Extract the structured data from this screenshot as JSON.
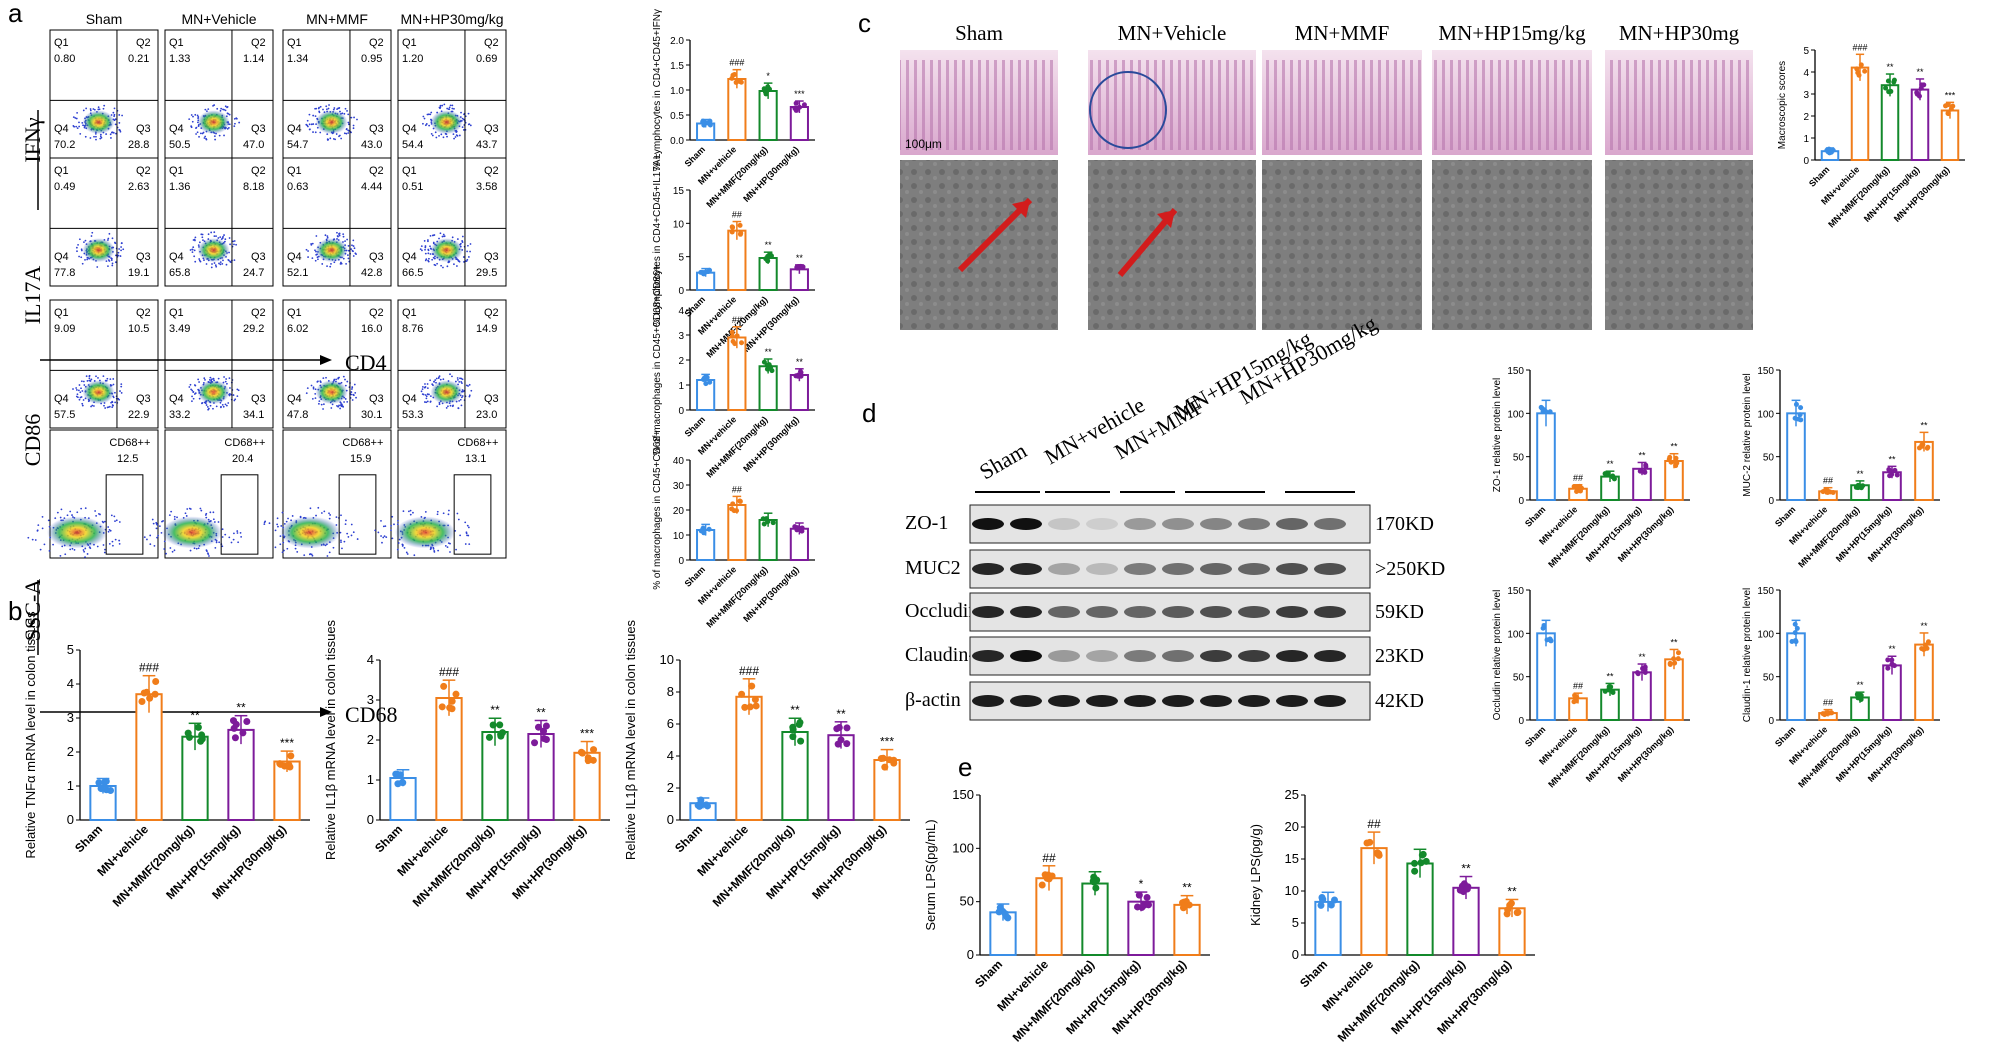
{
  "colors": {
    "sham": "#3a8ee6",
    "vehicle": "#f07d1a",
    "mmf": "#13892b",
    "hp15": "#7d1b9a",
    "hp30": "#f07d1a",
    "blue_ring": "#2a4a9a",
    "arrow": "#d21c1c"
  },
  "panel_a": {
    "letter": "a",
    "col_titles": [
      "Sham",
      "MN+Vehicle",
      "MN+MMF",
      "MN+HP30mg/kg"
    ],
    "axis_y": [
      "IFNγ",
      "IL17A",
      "CD86",
      "SSC-A"
    ],
    "axis_x": [
      "CD4",
      "CD68"
    ],
    "quad_labels": [
      "Q1",
      "Q2",
      "Q4",
      "Q3"
    ],
    "rows": [
      {
        "q": [
          [
            "0.80",
            "0.21",
            "70.2",
            "28.8"
          ],
          [
            "1.33",
            "1.14",
            "50.5",
            "47.0"
          ],
          [
            "1.34",
            "0.95",
            "54.7",
            "43.0"
          ],
          [
            "1.20",
            "0.69",
            "54.4",
            "43.7"
          ]
        ]
      },
      {
        "q": [
          [
            "0.49",
            "2.63",
            "77.8",
            "19.1"
          ],
          [
            "1.36",
            "8.18",
            "65.8",
            "24.7"
          ],
          [
            "0.63",
            "4.44",
            "52.1",
            "42.8"
          ],
          [
            "0.51",
            "3.58",
            "66.5",
            "29.5"
          ]
        ]
      },
      {
        "q": [
          [
            "9.09",
            "10.5",
            "57.5",
            "22.9"
          ],
          [
            "3.49",
            "29.2",
            "33.2",
            "34.1"
          ],
          [
            "6.02",
            "16.0",
            "47.8",
            "30.1"
          ],
          [
            "8.76",
            "14.9",
            "53.3",
            "23.0"
          ]
        ]
      }
    ],
    "gate_label": "CD68++",
    "gate_values": [
      "12.5",
      "20.4",
      "15.9",
      "13.1"
    ]
  },
  "bar_groups": {
    "five": [
      "Sham",
      "MN+vehicle",
      "MN+MMF(20mg/kg)",
      "MN+HP(15mg/kg)",
      "MN+HP(30mg/kg)"
    ],
    "four": [
      "Sham",
      "MN+vehicle",
      "MN+MMF(20mg/kg)",
      "MN+HP(30mg/kg)"
    ],
    "five_noparen": [
      "Sham",
      "MN+vehicle",
      "MN+MMF(20mg/kg)",
      "MN+HP(15mg/kg)",
      "MN+HP(30mg/kg)"
    ]
  },
  "chart_data": [
    {
      "id": "a1",
      "type": "bar",
      "ylabel": "% Lymphocytes in CD4+CD45+IFNγ",
      "ylim": [
        0,
        2
      ],
      "ticks": [
        "0.0",
        "0.5",
        "1.0",
        "1.5",
        "2.0"
      ],
      "values": [
        0.33,
        1.22,
        0.98,
        0.66
      ],
      "sig": [
        "",
        "###",
        "*",
        "***"
      ]
    },
    {
      "id": "a2",
      "type": "bar",
      "ylabel": "% Lymphocytes in CD4+CD45+IL17A+",
      "ylim": [
        0,
        15
      ],
      "ticks": [
        "0",
        "5",
        "10",
        "15"
      ],
      "values": [
        2.6,
        8.9,
        4.8,
        3.1
      ],
      "sig": [
        "",
        "##",
        "**",
        "**"
      ]
    },
    {
      "id": "a3",
      "type": "bar",
      "ylabel": "% of macrophages in CD45+CD68+CD86+",
      "ylim": [
        0,
        4
      ],
      "ticks": [
        "0",
        "1",
        "2",
        "3",
        "4"
      ],
      "values": [
        1.2,
        2.9,
        1.75,
        1.4
      ],
      "sig": [
        "",
        "##",
        "**",
        "**"
      ]
    },
    {
      "id": "a4",
      "type": "bar",
      "ylabel": "% of macrophages in CD45+CD68+",
      "ylim": [
        0,
        40
      ],
      "ticks": [
        "0",
        "10",
        "20",
        "30",
        "40"
      ],
      "values": [
        12,
        22,
        16,
        12.5
      ],
      "sig": [
        "",
        "##",
        "",
        ""
      ]
    },
    {
      "id": "b1",
      "type": "bar",
      "ylabel": "Relative TNFα mRNA level in colon tissues",
      "ylim": [
        0,
        5
      ],
      "ticks": [
        "0",
        "1",
        "2",
        "3",
        "4",
        "5"
      ],
      "values": [
        1.0,
        3.7,
        2.45,
        2.65,
        1.72
      ],
      "sig": [
        "",
        "###",
        "**",
        "**",
        "***"
      ]
    },
    {
      "id": "b2",
      "type": "bar",
      "ylabel": "Relative IL1β mRNA level in colon tissues",
      "ylim": [
        0,
        4
      ],
      "ticks": [
        "0",
        "1",
        "2",
        "3",
        "4"
      ],
      "values": [
        1.05,
        3.05,
        2.2,
        2.15,
        1.68
      ],
      "sig": [
        "",
        "###",
        "**",
        "**",
        "***"
      ]
    },
    {
      "id": "b3",
      "type": "bar",
      "ylabel": "Relative IL1β mRNA level in colon tissues",
      "ylim": [
        0,
        10
      ],
      "ticks": [
        "0",
        "2",
        "4",
        "6",
        "8",
        "10"
      ],
      "values": [
        1.05,
        7.7,
        5.5,
        5.3,
        3.75
      ],
      "sig": [
        "",
        "###",
        "**",
        "**",
        "***"
      ]
    },
    {
      "id": "c1",
      "type": "bar",
      "ylabel": "Macroscopic scores",
      "ylim": [
        0,
        5
      ],
      "ticks": [
        "0",
        "1",
        "2",
        "3",
        "4",
        "5"
      ],
      "values": [
        0.4,
        4.2,
        3.4,
        3.2,
        2.25
      ],
      "sig": [
        "",
        "###",
        "**",
        "**",
        "***"
      ]
    },
    {
      "id": "d1",
      "type": "bar",
      "ylabel": "ZO-1 relative protein level",
      "ylim": [
        0,
        150
      ],
      "ticks": [
        "0",
        "50",
        "100",
        "150"
      ],
      "values": [
        100,
        13,
        27,
        36,
        45
      ],
      "sig": [
        "",
        "##",
        "**",
        "**",
        "**"
      ]
    },
    {
      "id": "d2",
      "type": "bar",
      "ylabel": "MUC-2 relative protein level",
      "ylim": [
        0,
        150
      ],
      "ticks": [
        "0",
        "50",
        "100",
        "150"
      ],
      "values": [
        100,
        10,
        17,
        32,
        67
      ],
      "sig": [
        "",
        "##",
        "**",
        "**",
        "**"
      ]
    },
    {
      "id": "d3",
      "type": "bar",
      "ylabel": "Occludin relative protein level",
      "ylim": [
        0,
        150
      ],
      "ticks": [
        "0",
        "50",
        "100",
        "150"
      ],
      "values": [
        100,
        25,
        35,
        55,
        70
      ],
      "sig": [
        "",
        "##",
        "**",
        "**",
        "**"
      ]
    },
    {
      "id": "d4",
      "type": "bar",
      "ylabel": "Claudin-1 relative protein level",
      "ylim": [
        0,
        150
      ],
      "ticks": [
        "0",
        "50",
        "100",
        "150"
      ],
      "values": [
        100,
        8,
        26,
        63,
        87
      ],
      "sig": [
        "",
        "##",
        "**",
        "**",
        "**"
      ]
    },
    {
      "id": "e1",
      "type": "bar",
      "ylabel": "Serum LPS(pg/mL)",
      "ylim": [
        0,
        150
      ],
      "ticks": [
        "0",
        "50",
        "100",
        "150"
      ],
      "values": [
        40,
        72,
        67,
        50,
        47
      ],
      "sig": [
        "",
        "##",
        "",
        "*",
        "**"
      ]
    },
    {
      "id": "e2",
      "type": "bar",
      "ylabel": "Kidney LPS(pg/g)",
      "ylim": [
        0,
        25
      ],
      "ticks": [
        "0",
        "5",
        "10",
        "15",
        "20",
        "25"
      ],
      "values": [
        8.3,
        16.7,
        14.3,
        10.5,
        7.3
      ],
      "sig": [
        "",
        "##",
        "",
        "**",
        "**"
      ]
    }
  ],
  "panel_b": {
    "letter": "b"
  },
  "panel_c": {
    "letter": "c",
    "titles": [
      "Sham",
      "MN+Vehicle",
      "MN+MMF",
      "MN+HP15mg/kg",
      "MN+HP30mg"
    ],
    "scale": "100μm"
  },
  "panel_d": {
    "letter": "d",
    "lanes": [
      "Sham",
      "MN+vehicle",
      "MN+MMF",
      "MN+HP15mg/kg",
      "MN+HP30mg/kg"
    ],
    "bands": [
      {
        "name": "ZO-1",
        "kd": "170KD"
      },
      {
        "name": "MUC2",
        "kd": ">250KD"
      },
      {
        "name": "Occludin",
        "kd": "59KD"
      },
      {
        "name": "Claudin-1",
        "kd": "23KD"
      },
      {
        "name": "β-actin",
        "kd": "42KD"
      }
    ]
  },
  "panel_e": {
    "letter": "e"
  }
}
